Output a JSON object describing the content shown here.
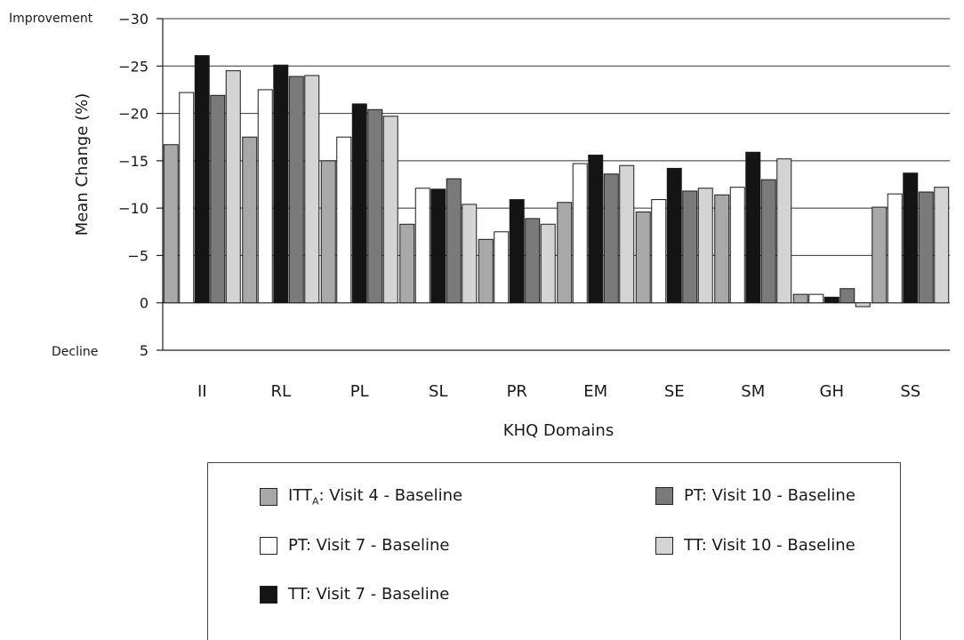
{
  "chart_data": {
    "type": "bar",
    "title": "",
    "xlabel": "KHQ Domains",
    "ylabel": "Mean Change (%)",
    "ylim": [
      5,
      -30
    ],
    "y_axis_inverted": true,
    "yticks": [
      "−30",
      "−25",
      "−20",
      "−15",
      "−10",
      "−5",
      "0",
      "5"
    ],
    "ytick_values": [
      -30,
      -25,
      -20,
      -15,
      -10,
      -5,
      0,
      5
    ],
    "top_annotation": "Improvement",
    "bottom_annotation": "Decline",
    "grid": "horizontal",
    "legend_position": "bottom",
    "categories": [
      "II",
      "RL",
      "PL",
      "SL",
      "PR",
      "EM",
      "SE",
      "SM",
      "GH",
      "SS"
    ],
    "series": [
      {
        "name": "ITT",
        "name_sub": "A",
        "name_rest": ": Visit 4 - Baseline",
        "color": "#a8a8a8",
        "values": [
          -16.7,
          -17.5,
          -15.0,
          -8.3,
          -6.7,
          -10.6,
          -9.6,
          -11.4,
          -0.9,
          -10.1
        ]
      },
      {
        "name": "PT: Visit 7 - Baseline",
        "color": "#ffffff",
        "values": [
          -22.2,
          -22.5,
          -17.5,
          -12.1,
          -7.5,
          -14.7,
          -10.9,
          -12.2,
          -0.9,
          -11.5
        ]
      },
      {
        "name": "TT: Visit 7 - Baseline",
        "color": "#141414",
        "values": [
          -26.1,
          -25.1,
          -21.0,
          -12.0,
          -10.9,
          -15.6,
          -14.2,
          -15.9,
          -0.6,
          -13.7
        ]
      },
      {
        "name": "PT: Visit 10 - Baseline",
        "color": "#7a7a7a",
        "values": [
          -21.9,
          -23.9,
          -20.4,
          -13.1,
          -8.9,
          -13.6,
          -11.8,
          -13.0,
          -1.5,
          -11.7
        ]
      },
      {
        "name": "TT: Visit 10 - Baseline",
        "color": "#d4d4d4",
        "values": [
          -24.5,
          -24.0,
          -19.7,
          -10.4,
          -8.3,
          -14.5,
          -12.1,
          -15.2,
          0.4,
          -12.2
        ]
      }
    ]
  }
}
